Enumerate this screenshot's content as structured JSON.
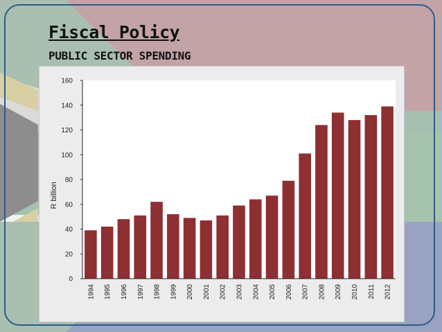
{
  "slide": {
    "title": "Fiscal Policy",
    "subtitle": "PUBLIC SECTOR SPENDING"
  },
  "colors": {
    "bar": "#8e2f32",
    "plot_background": "#ffffff",
    "frame": "#2f5a8a"
  },
  "chart_data": {
    "type": "bar",
    "title": "",
    "xlabel": "",
    "ylabel": "R billion",
    "ylim": [
      0,
      160
    ],
    "yticks": [
      0,
      20,
      40,
      60,
      80,
      100,
      120,
      140,
      160
    ],
    "grid": false,
    "categories": [
      "1994",
      "1995",
      "1996",
      "1997",
      "1998",
      "1999",
      "2000",
      "2001",
      "2002",
      "2003",
      "2004",
      "2005",
      "2006",
      "2007",
      "2008",
      "2009",
      "2010",
      "2011",
      "2012"
    ],
    "values": [
      39,
      42,
      48,
      51,
      62,
      52,
      49,
      47,
      51,
      59,
      64,
      67,
      79,
      101,
      124,
      134,
      128,
      132,
      139
    ]
  }
}
